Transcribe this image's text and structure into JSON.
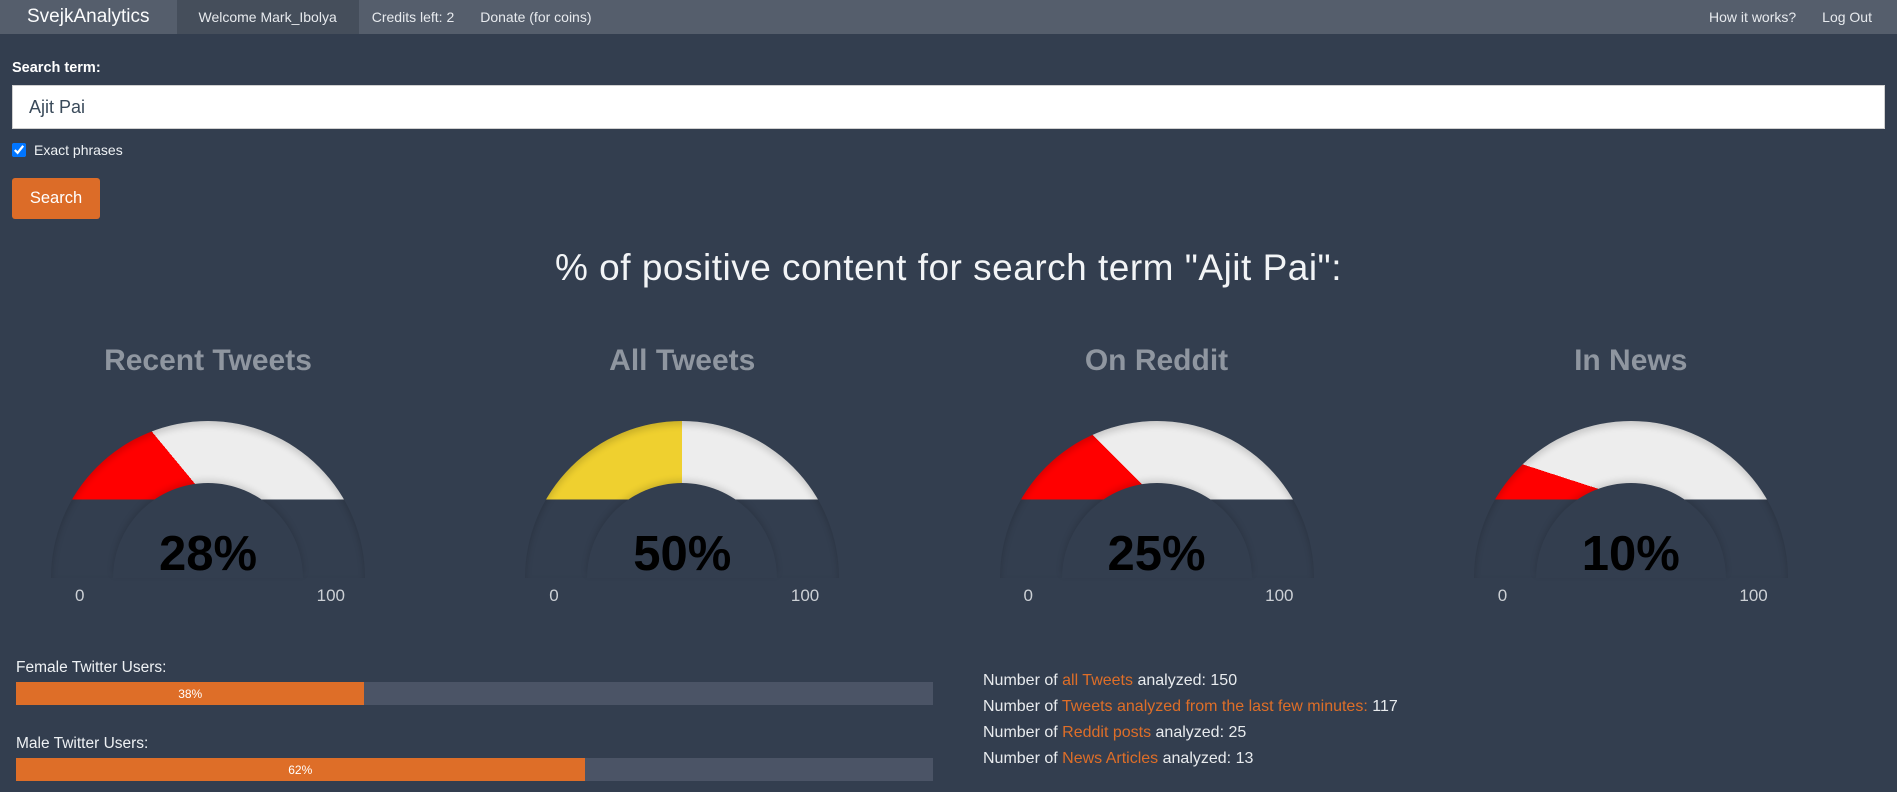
{
  "navbar": {
    "brand": "SvejkAnalytics",
    "items": [
      {
        "label": "Welcome Mark_Ibolya",
        "active": true
      },
      {
        "label": "Credits left: 2",
        "active": false
      },
      {
        "label": "Donate (for coins)",
        "active": false
      }
    ],
    "right_items": [
      {
        "label": "How it works?"
      },
      {
        "label": "Log Out"
      }
    ]
  },
  "search": {
    "label": "Search term:",
    "value": "Ajit Pai",
    "checkbox_label": "Exact phrases",
    "checkbox_checked": true,
    "button_label": "Search"
  },
  "heading": "% of positive content for search term \"Ajit Pai\":",
  "colors": {
    "page_background": "#333e4f",
    "navbar_background": "#555e6c",
    "navbar_active_background": "#454e5b",
    "accent_orange": "#de6e28",
    "gauge_track": "#ededed",
    "gauge_red": "#ff0000",
    "gauge_yellow": "#efd02f",
    "bar_track": "#4b5466"
  },
  "chart_data": [
    {
      "type": "gauge",
      "title": "Recent Tweets",
      "value": 28,
      "display": "28%",
      "min": 0,
      "max": 100,
      "color": "#ff0000"
    },
    {
      "type": "gauge",
      "title": "All Tweets",
      "value": 50,
      "display": "50%",
      "min": 0,
      "max": 100,
      "color": "#efd02f"
    },
    {
      "type": "gauge",
      "title": "On Reddit",
      "value": 25,
      "display": "25%",
      "min": 0,
      "max": 100,
      "color": "#ff0000"
    },
    {
      "type": "gauge",
      "title": "In News",
      "value": 10,
      "display": "10%",
      "min": 0,
      "max": 100,
      "color": "#ff0000"
    }
  ],
  "gauges": {
    "min_label": "0",
    "max_label": "100"
  },
  "demographics": {
    "items": [
      {
        "label": "Female Twitter Users:",
        "percent": 38,
        "display": "38%"
      },
      {
        "label": "Male Twitter Users:",
        "percent": 62,
        "display": "62%"
      }
    ]
  },
  "stats": {
    "rows": [
      {
        "prefix": "Number of ",
        "link": "all Tweets",
        "suffix": " analyzed: ",
        "value": "150"
      },
      {
        "prefix": "Number of ",
        "link": "Tweets analyzed from the last few minutes:",
        "suffix": " ",
        "value": "117"
      },
      {
        "prefix": "Number of ",
        "link": "Reddit posts",
        "suffix": " analyzed: ",
        "value": "25"
      },
      {
        "prefix": "Number of ",
        "link": "News Articles",
        "suffix": " analyzed: ",
        "value": "13"
      }
    ]
  }
}
